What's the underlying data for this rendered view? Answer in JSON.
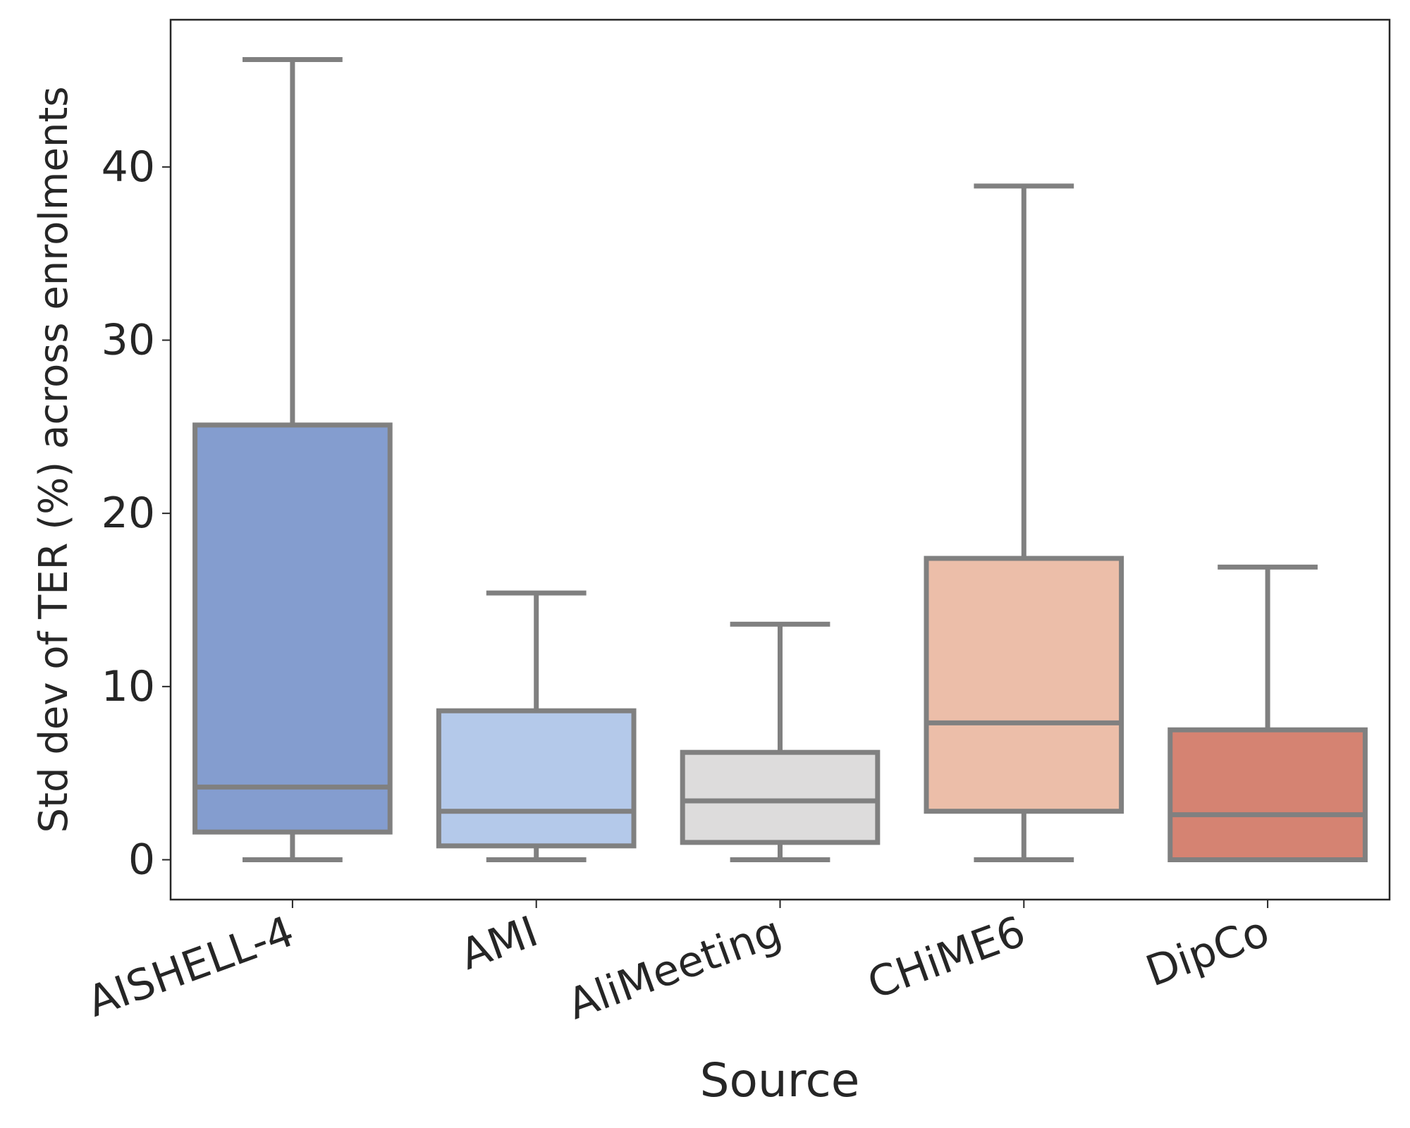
{
  "chart_data": {
    "type": "box",
    "x_label": "Source",
    "y_label": "Std dev of TER (%) across enrolments",
    "categories": [
      "AISHELL-4",
      "AMI",
      "AliMeeting",
      "CHiME6",
      "DipCo"
    ],
    "boxes": [
      {
        "color": "#849dcf",
        "min": 0,
        "q1": 1.6,
        "median": 4.2,
        "q3": 25.1,
        "max": 46.2
      },
      {
        "color": "#b4c9ea",
        "min": 0,
        "q1": 0.8,
        "median": 2.8,
        "q3": 8.6,
        "max": 15.4
      },
      {
        "color": "#dddcdc",
        "min": 0,
        "q1": 1.0,
        "median": 3.4,
        "q3": 6.2,
        "max": 13.6
      },
      {
        "color": "#ecbea9",
        "min": 0,
        "q1": 2.8,
        "median": 7.9,
        "q3": 17.4,
        "max": 38.9
      },
      {
        "color": "#d58372",
        "min": 0,
        "q1": 0,
        "median": 2.6,
        "q3": 7.5,
        "max": 16.9
      }
    ],
    "edge_color": "#808080",
    "ylim": [
      -2.3,
      48.5
    ],
    "yticks": [
      0,
      10,
      20,
      30,
      40
    ]
  }
}
